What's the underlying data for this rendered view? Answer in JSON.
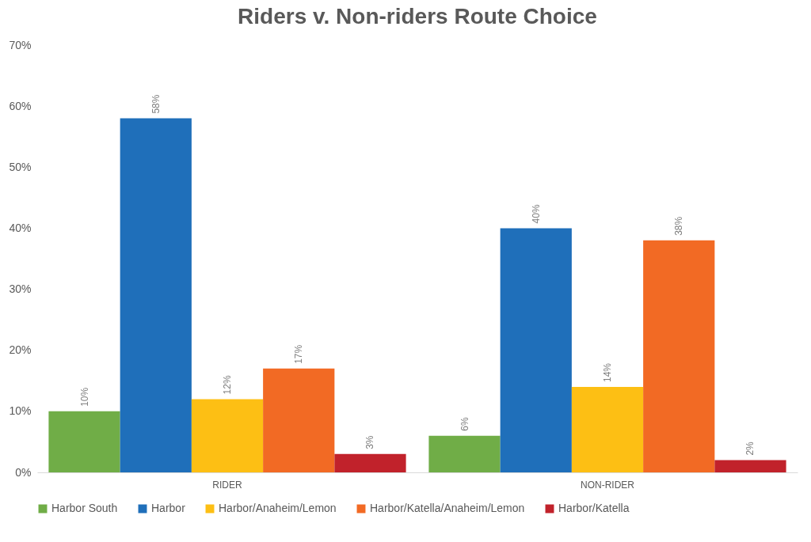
{
  "chart_data": {
    "type": "bar",
    "title": "Riders v. Non-riders Route Choice",
    "categories": [
      "RIDER",
      "NON-RIDER"
    ],
    "series": [
      {
        "name": "Harbor South",
        "color": "#70ad47",
        "values": [
          10,
          6
        ],
        "value_labels": [
          "10%",
          "6%"
        ]
      },
      {
        "name": "Harbor",
        "color": "#1f6fba",
        "values": [
          58,
          40
        ],
        "value_labels": [
          "58%",
          "40%"
        ]
      },
      {
        "name": "Harbor/Anaheim/Lemon",
        "color": "#fdbf14",
        "values": [
          12,
          14
        ],
        "value_labels": [
          "12%",
          "14%"
        ]
      },
      {
        "name": "Harbor/Katella/Anaheim/Lemon",
        "color": "#f26a24",
        "values": [
          17,
          38
        ],
        "value_labels": [
          "17%",
          "38%"
        ]
      },
      {
        "name": "Harbor/Katella",
        "color": "#c1222b",
        "values": [
          3,
          2
        ],
        "value_labels": [
          "3%",
          "2%"
        ]
      }
    ],
    "ylim": [
      0,
      70
    ],
    "yticks": [
      {
        "value": 0,
        "label": "0%"
      },
      {
        "value": 10,
        "label": "10%"
      },
      {
        "value": 20,
        "label": "20%"
      },
      {
        "value": 30,
        "label": "30%"
      },
      {
        "value": 40,
        "label": "40%"
      },
      {
        "value": 50,
        "label": "50%"
      },
      {
        "value": 60,
        "label": "60%"
      },
      {
        "value": 70,
        "label": "70%"
      }
    ],
    "grid": false,
    "legend": "bottom"
  }
}
